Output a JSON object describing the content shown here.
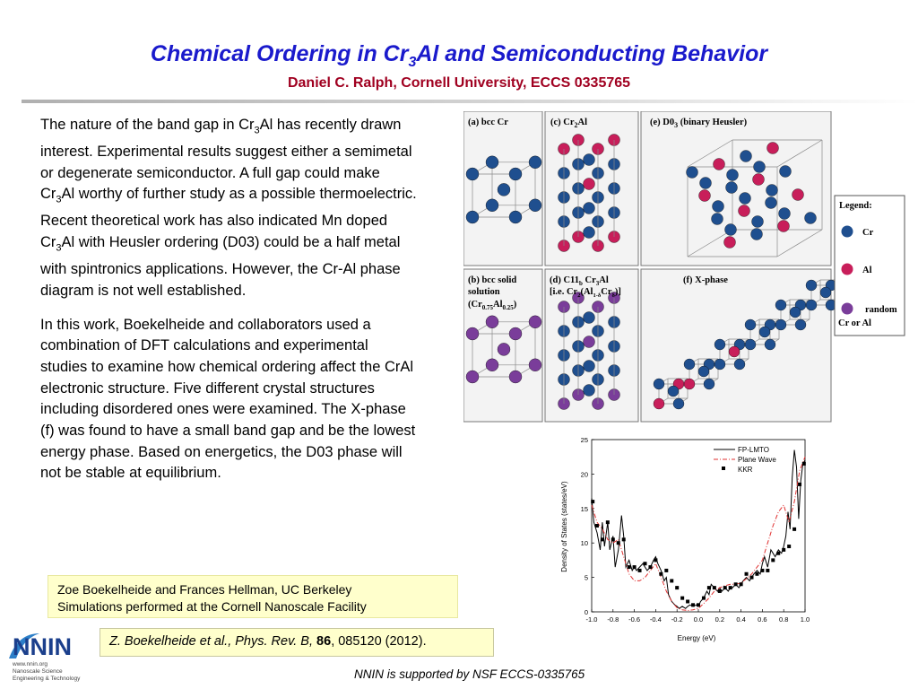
{
  "title": {
    "pre": "Chemical Ordering in Cr",
    "sub": "3",
    "post": "Al and Semiconducting Behavior"
  },
  "subtitle": "Daniel C. Ralph, Cornell University, ECCS  0335765",
  "paragraph1": {
    "a": "The nature of the band gap in Cr",
    "a_sub": "3",
    "b": "Al has recently drawn interest.  Experimental results suggest either a semimetal or degenerate semiconductor.  A full gap could make Cr",
    "b_sub": "3",
    "c": "Al worthy of further study as a possible thermoelectric.  Recent theoretical work has also indicated Mn doped Cr",
    "c_sub": "3",
    "d": "Al with Heusler ordering (D03) could be a half metal with spintronics applications.  However, the Cr-Al phase diagram is not well established."
  },
  "paragraph2": "In this work, Boekelheide and collaborators used a combination of DFT calculations and experimental studies to examine how chemical ordering affect the CrAl electronic structure.  Five different crystal structures including disordered ones were examined.  The X-phase (f) was found to have a small band gap and be the lowest energy phase.  Based on energetics, the D03 phase will not be stable at equilibrium.",
  "credits": {
    "line1": "Zoe Boekelheide and Frances Hellman, UC Berkeley",
    "line2": "Simulations performed at the Cornell Nanoscale Facility"
  },
  "citation": {
    "authors": "Z. Boekelheide et al., Phys. Rev. B, ",
    "volume": "86",
    "rest": ", 085120 (2012)."
  },
  "footer": "NNIN is supported by NSF ECCS-0335765",
  "logo": {
    "text": "NNIN",
    "line1": "www.nnin.org",
    "line2": "Nanoscale Science",
    "line3": "Engineering & Technology"
  },
  "crystal_figure": {
    "panel_a": "(a) bcc Cr",
    "panel_b": {
      "l1": "(b) bcc solid",
      "l2": "solution",
      "l3a": "(Cr",
      "l3s1": "0.75",
      "l3b": "Al",
      "l3s2": "0.25",
      "l3c": ")"
    },
    "panel_c": {
      "a": "(c) Cr",
      "s": "2",
      "b": "Al"
    },
    "panel_d": {
      "l1a": "(d) C11",
      "l1s1": "b",
      "l1b": " Cr",
      "l1s2": "3",
      "l1c": "Al",
      "l2a": "[i.e. Cr",
      "l2s1": "2",
      "l2b": "(Al",
      "l2s2": "1-δ",
      "l2c": "Cr",
      "l2s3": "δ",
      "l2d": ")]"
    },
    "panel_e": {
      "a": "(e) D0",
      "s": "3",
      "b": " (binary Heusler)"
    },
    "panel_f": "(f) X-phase",
    "legend": {
      "title": "Legend:",
      "cr": "Cr",
      "al": "Al",
      "random1": "random",
      "random2": "Cr or Al"
    },
    "colors": {
      "cr": "#1f4f8f",
      "al": "#c81e5a",
      "random": "#7a3d9a"
    }
  },
  "chart_data": {
    "type": "line",
    "xlabel": "Energy (eV)",
    "ylabel": "Density of States (states/eV)",
    "xlim": [
      -1.0,
      1.0
    ],
    "ylim": [
      0,
      25
    ],
    "xticks": [
      "-1.0",
      "-0.8",
      "-0.6",
      "-0.4",
      "-0.2",
      "0.0",
      "0.2",
      "0.4",
      "0.6",
      "0.8",
      "1.0"
    ],
    "yticks": [
      "0",
      "5",
      "10",
      "15",
      "20",
      "25"
    ],
    "legend_position": "top-right",
    "series": [
      {
        "name": "FP-LMTO",
        "style": "solid",
        "color": "#000000",
        "x": [
          -1.0,
          -0.98,
          -0.95,
          -0.92,
          -0.9,
          -0.88,
          -0.85,
          -0.83,
          -0.8,
          -0.78,
          -0.75,
          -0.72,
          -0.7,
          -0.68,
          -0.65,
          -0.62,
          -0.6,
          -0.58,
          -0.55,
          -0.52,
          -0.5,
          -0.48,
          -0.45,
          -0.42,
          -0.4,
          -0.38,
          -0.35,
          -0.32,
          -0.3,
          -0.28,
          -0.25,
          -0.22,
          -0.2,
          -0.18,
          -0.15,
          -0.12,
          -0.1,
          -0.08,
          -0.05,
          -0.02,
          0.0,
          0.02,
          0.05,
          0.08,
          0.1,
          0.12,
          0.15,
          0.18,
          0.2,
          0.22,
          0.25,
          0.28,
          0.3,
          0.32,
          0.35,
          0.38,
          0.4,
          0.42,
          0.45,
          0.48,
          0.5,
          0.52,
          0.55,
          0.58,
          0.6,
          0.62,
          0.65,
          0.68,
          0.7,
          0.72,
          0.75,
          0.78,
          0.8,
          0.82,
          0.84,
          0.86,
          0.88,
          0.9,
          0.92,
          0.94,
          0.96,
          0.98,
          1.0
        ],
        "y": [
          16.5,
          13.0,
          11.5,
          9.0,
          13.0,
          9.5,
          13.0,
          9.0,
          11.0,
          6.5,
          9.0,
          14.0,
          11.0,
          6.5,
          7.5,
          6.0,
          6.5,
          6.0,
          6.5,
          7.0,
          6.5,
          6.0,
          6.5,
          7.5,
          8.0,
          7.0,
          6.0,
          4.5,
          5.0,
          2.5,
          1.5,
          1.0,
          0.8,
          0.5,
          0.8,
          0.5,
          0.8,
          1.0,
          0.8,
          1.0,
          0.8,
          1.5,
          2.0,
          3.0,
          2.5,
          4.0,
          3.5,
          3.0,
          3.5,
          3.0,
          3.5,
          3.0,
          3.5,
          3.5,
          4.0,
          3.5,
          4.0,
          4.5,
          5.0,
          4.5,
          5.0,
          5.5,
          6.0,
          5.5,
          7.0,
          8.0,
          6.5,
          9.0,
          8.5,
          8.0,
          9.0,
          8.5,
          9.5,
          11.0,
          14.5,
          12.0,
          19.5,
          23.5,
          21.0,
          13.5,
          19.0,
          21.5,
          22.0
        ]
      },
      {
        "name": "Plane Wave",
        "style": "dashdot",
        "color": "#e03030",
        "x": [
          -1.0,
          -0.95,
          -0.9,
          -0.85,
          -0.8,
          -0.75,
          -0.7,
          -0.65,
          -0.6,
          -0.55,
          -0.5,
          -0.45,
          -0.4,
          -0.35,
          -0.3,
          -0.25,
          -0.2,
          -0.15,
          -0.1,
          -0.05,
          0.0,
          0.05,
          0.1,
          0.15,
          0.2,
          0.25,
          0.3,
          0.35,
          0.4,
          0.45,
          0.5,
          0.55,
          0.6,
          0.65,
          0.7,
          0.75,
          0.8,
          0.85,
          0.9,
          0.95,
          1.0
        ],
        "y": [
          15.5,
          13.0,
          12.0,
          10.5,
          10.0,
          10.5,
          8.0,
          5.5,
          4.5,
          4.5,
          5.0,
          6.0,
          7.0,
          5.0,
          3.0,
          1.5,
          0.6,
          0.3,
          0.2,
          0.3,
          0.5,
          1.2,
          2.0,
          3.0,
          3.5,
          3.8,
          4.0,
          4.0,
          4.2,
          4.8,
          5.5,
          6.5,
          7.5,
          10.0,
          12.5,
          14.5,
          15.5,
          13.0,
          16.0,
          20.5,
          22.5
        ]
      },
      {
        "name": "KKR",
        "style": "marker",
        "color": "#000000",
        "x": [
          -0.99,
          -0.95,
          -0.9,
          -0.85,
          -0.8,
          -0.75,
          -0.7,
          -0.65,
          -0.6,
          -0.55,
          -0.5,
          -0.45,
          -0.4,
          -0.35,
          -0.3,
          -0.25,
          -0.2,
          -0.15,
          -0.1,
          -0.05,
          0.0,
          0.05,
          0.1,
          0.15,
          0.2,
          0.25,
          0.3,
          0.35,
          0.4,
          0.45,
          0.5,
          0.55,
          0.6,
          0.65,
          0.7,
          0.75,
          0.8,
          0.85,
          0.9,
          0.95,
          0.99
        ],
        "y": [
          16.0,
          12.5,
          10.5,
          13.0,
          10.5,
          10.0,
          10.5,
          6.5,
          6.5,
          6.0,
          7.0,
          6.5,
          7.5,
          5.5,
          6.0,
          4.5,
          3.5,
          2.0,
          1.5,
          1.0,
          1.0,
          2.0,
          3.5,
          3.5,
          3.0,
          3.5,
          3.5,
          4.0,
          4.0,
          5.5,
          5.0,
          5.5,
          6.0,
          6.0,
          7.5,
          8.5,
          9.0,
          9.5,
          12.0,
          18.5,
          21.5
        ]
      }
    ]
  }
}
